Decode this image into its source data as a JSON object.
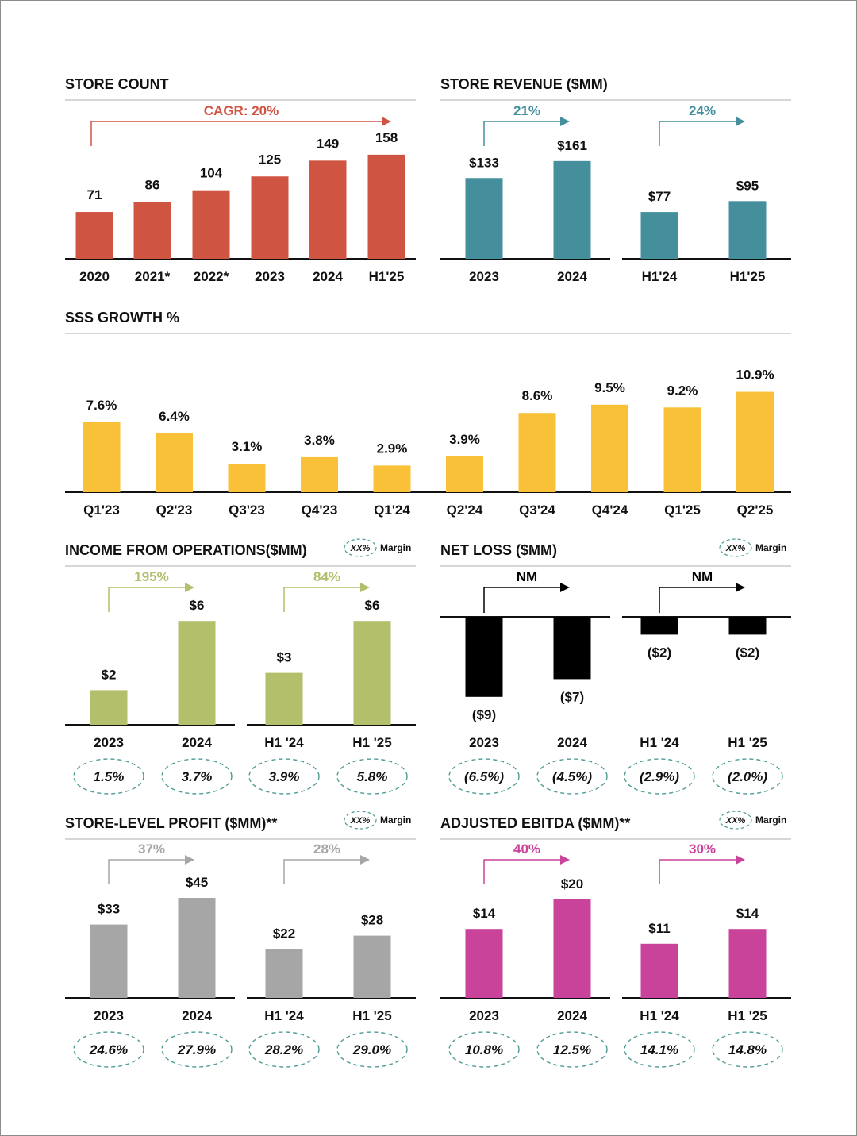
{
  "colors": {
    "store_count": "#d05442",
    "store_revenue": "#458f9d",
    "sss": "#f8c137",
    "income": "#b3bf6b",
    "net_loss": "#000000",
    "store_profit": "#a6a6a6",
    "ebitda": "#c9439b",
    "text": "#111111",
    "rule": "#c8c8c8",
    "oval": "#4d9c95"
  },
  "legend": {
    "oval_text": "XX%",
    "label": "Margin"
  },
  "chart_data": [
    {
      "id": "store_count",
      "type": "bar",
      "title": "STORE COUNT",
      "categories": [
        "2020",
        "2021*",
        "2022*",
        "2023",
        "2024",
        "H1'25"
      ],
      "values": [
        71,
        86,
        104,
        125,
        149,
        158
      ],
      "value_labels": [
        "71",
        "86",
        "104",
        "125",
        "149",
        "158"
      ],
      "growth": [
        {
          "label": "CAGR: 20%",
          "from": 0,
          "to": 5
        }
      ]
    },
    {
      "id": "store_revenue",
      "type": "bar",
      "title": "STORE REVENUE ($MM)",
      "groups": [
        {
          "categories": [
            "2023",
            "2024"
          ],
          "values": [
            133,
            161
          ],
          "value_labels": [
            "$133",
            "$161"
          ],
          "growth": "21%"
        },
        {
          "categories": [
            "H1'24",
            "H1'25"
          ],
          "values": [
            77,
            95
          ],
          "value_labels": [
            "$77",
            "$95"
          ],
          "growth": "24%"
        }
      ]
    },
    {
      "id": "sss",
      "type": "bar",
      "title": "SSS GROWTH %",
      "categories": [
        "Q1'23",
        "Q2'23",
        "Q3'23",
        "Q4'23",
        "Q1'24",
        "Q2'24",
        "Q3'24",
        "Q4'24",
        "Q1'25",
        "Q2'25"
      ],
      "values": [
        7.6,
        6.4,
        3.1,
        3.8,
        2.9,
        3.9,
        8.6,
        9.5,
        9.2,
        10.9
      ],
      "value_labels": [
        "7.6%",
        "6.4%",
        "3.1%",
        "3.8%",
        "2.9%",
        "3.9%",
        "8.6%",
        "9.5%",
        "9.2%",
        "10.9%"
      ]
    },
    {
      "id": "income",
      "type": "bar",
      "title": "INCOME FROM OPERATIONS($MM)",
      "groups": [
        {
          "categories": [
            "2023",
            "2024"
          ],
          "values": [
            2,
            6
          ],
          "value_labels": [
            "$2",
            "$6"
          ],
          "growth": "195%",
          "margins": [
            "1.5%",
            "3.7%"
          ]
        },
        {
          "categories": [
            "H1 '24",
            "H1 '25"
          ],
          "values": [
            3,
            6
          ],
          "value_labels": [
            "$3",
            "$6"
          ],
          "growth": "84%",
          "margins": [
            "3.9%",
            "5.8%"
          ]
        }
      ]
    },
    {
      "id": "net_loss",
      "type": "bar",
      "title": "NET LOSS ($MM)",
      "groups": [
        {
          "categories": [
            "2023",
            "2024"
          ],
          "values": [
            -9,
            -7
          ],
          "value_labels": [
            "($9)",
            "($7)"
          ],
          "growth": "NM",
          "margins": [
            "(6.5%)",
            "(4.5%)"
          ]
        },
        {
          "categories": [
            "H1 '24",
            "H1 '25"
          ],
          "values": [
            -2,
            -2
          ],
          "value_labels": [
            "($2)",
            "($2)"
          ],
          "growth": "NM",
          "margins": [
            "(2.9%)",
            "(2.0%)"
          ]
        }
      ]
    },
    {
      "id": "store_profit",
      "type": "bar",
      "title": "STORE-LEVEL PROFIT ($MM)**",
      "groups": [
        {
          "categories": [
            "2023",
            "2024"
          ],
          "values": [
            33,
            45
          ],
          "value_labels": [
            "$33",
            "$45"
          ],
          "growth": "37%",
          "margins": [
            "24.6%",
            "27.9%"
          ]
        },
        {
          "categories": [
            "H1 '24",
            "H1 '25"
          ],
          "values": [
            22,
            28
          ],
          "value_labels": [
            "$22",
            "$28"
          ],
          "growth": "28%",
          "margins": [
            "28.2%",
            "29.0%"
          ]
        }
      ]
    },
    {
      "id": "ebitda",
      "type": "bar",
      "title": "ADJUSTED EBITDA ($MM)**",
      "groups": [
        {
          "categories": [
            "2023",
            "2024"
          ],
          "values": [
            14,
            20
          ],
          "value_labels": [
            "$14",
            "$20"
          ],
          "growth": "40%",
          "margins": [
            "10.8%",
            "12.5%"
          ]
        },
        {
          "categories": [
            "H1 '24",
            "H1 '25"
          ],
          "values": [
            11,
            14
          ],
          "value_labels": [
            "$11",
            "$14"
          ],
          "growth": "30%",
          "margins": [
            "14.1%",
            "14.8%"
          ]
        }
      ]
    }
  ]
}
